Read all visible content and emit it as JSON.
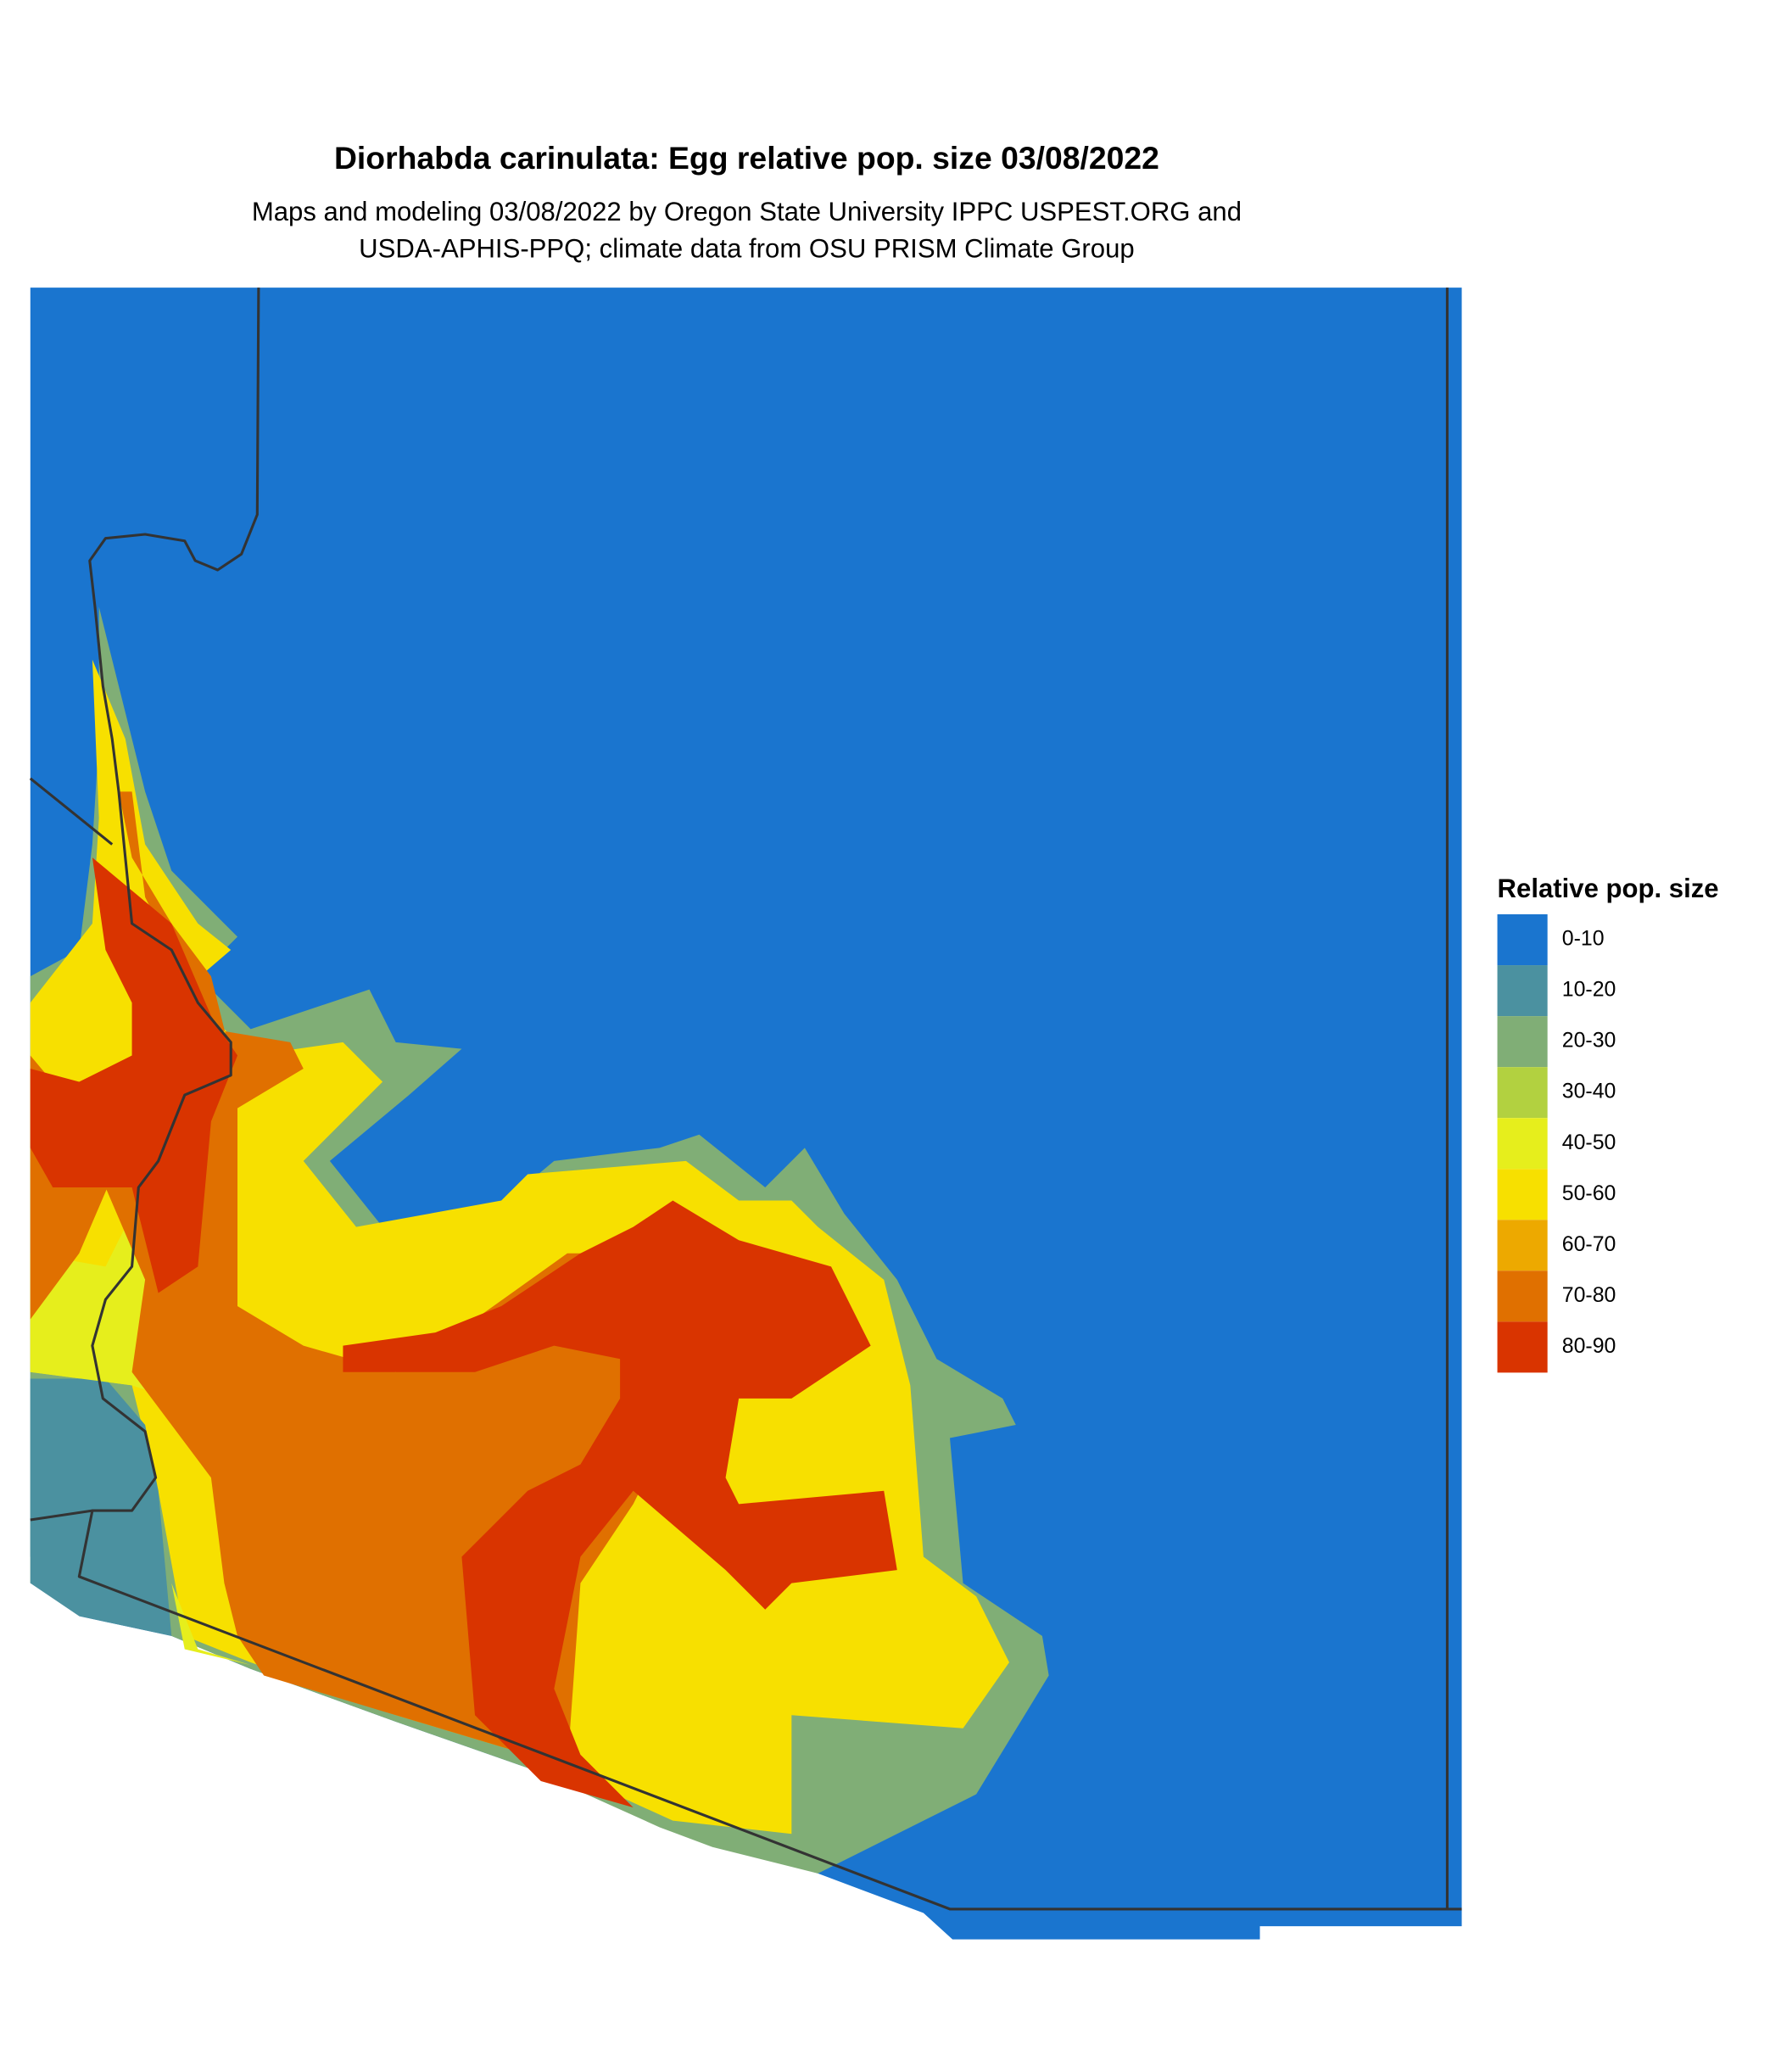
{
  "title": "Diorhabda carinulata: Egg relative pop. size 03/08/2022",
  "subtitle_lines": [
    "Maps and modeling 03/08/2022 by Oregon State University IPPC USPEST.ORG and",
    "USDA-APHIS-PPQ; climate data from OSU PRISM Climate Group"
  ],
  "legend": {
    "title": "Relative pop. size",
    "items": [
      {
        "label": "0-10",
        "color": "#1a75cf"
      },
      {
        "label": "10-20",
        "color": "#4b91a0"
      },
      {
        "label": "20-30",
        "color": "#80ae76"
      },
      {
        "label": "30-40",
        "color": "#b2d140"
      },
      {
        "label": "40-50",
        "color": "#e6ee1c"
      },
      {
        "label": "50-60",
        "color": "#f7e000"
      },
      {
        "label": "60-70",
        "color": "#eda900"
      },
      {
        "label": "70-80",
        "color": "#e07000"
      },
      {
        "label": "80-90",
        "color": "#d93400"
      }
    ]
  }
}
